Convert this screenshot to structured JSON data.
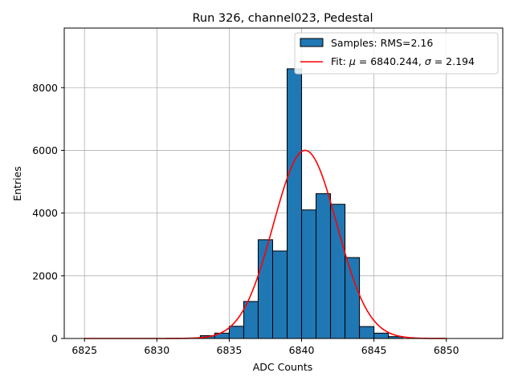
{
  "chart_data": {
    "type": "bar",
    "title": "Run 326, channel023, Pedestal",
    "xlabel": "ADC Counts",
    "ylabel": "Entries",
    "xlim": [
      6823.6,
      6853.9
    ],
    "ylim": [
      0,
      9900
    ],
    "xticks": [
      6825,
      6830,
      6835,
      6840,
      6845,
      6850
    ],
    "yticks": [
      0,
      2000,
      4000,
      6000,
      8000
    ],
    "grid": true,
    "legend_position": "top-right",
    "bin_width": 1,
    "bins": [
      {
        "x0": 6833,
        "count": 90
      },
      {
        "x0": 6834,
        "count": 170
      },
      {
        "x0": 6835,
        "count": 390
      },
      {
        "x0": 6836,
        "count": 1180
      },
      {
        "x0": 6837,
        "count": 3150
      },
      {
        "x0": 6838,
        "count": 2790
      },
      {
        "x0": 6839,
        "count": 8600
      },
      {
        "x0": 6840,
        "count": 4100
      },
      {
        "x0": 6841,
        "count": 4620
      },
      {
        "x0": 6842,
        "count": 4280
      },
      {
        "x0": 6843,
        "count": 2580
      },
      {
        "x0": 6844,
        "count": 380
      },
      {
        "x0": 6845,
        "count": 170
      },
      {
        "x0": 6846,
        "count": 60
      }
    ],
    "series": [
      {
        "name": "Samples: RMS=2.16",
        "type": "histogram",
        "color": "#1f77b4",
        "edgecolor": "#000000"
      },
      {
        "name": "Fit: μ = 6840.244, σ = 2.194",
        "type": "line",
        "color": "#ff0000"
      }
    ],
    "fit": {
      "mu": 6840.244,
      "sigma": 2.194,
      "amplitude": 6000,
      "x_range": [
        6825,
        6850
      ]
    },
    "legend": {
      "samples_label": "Samples: RMS=2.16",
      "fit_prefix": "Fit: ",
      "mu_symbol": "μ",
      "mu_text": " = 6840.244, ",
      "sigma_symbol": "σ",
      "sigma_text": " = 2.194"
    }
  }
}
